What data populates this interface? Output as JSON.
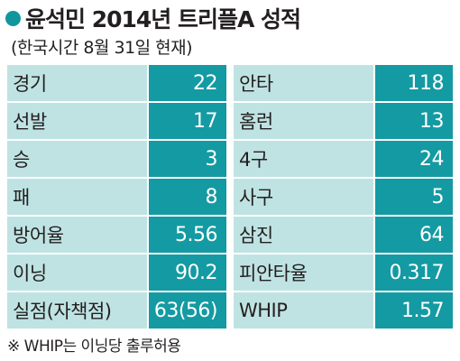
{
  "title": "윤석민 2014년 트리플A 성적",
  "subtitle": "(한국시간 8월 31일 현재)",
  "left_column": [
    {
      "label": "경기",
      "value": "22"
    },
    {
      "label": "선발",
      "value": "17"
    },
    {
      "label": "승",
      "value": "3"
    },
    {
      "label": "패",
      "value": "8"
    },
    {
      "label": "방어율",
      "value": "5.56"
    },
    {
      "label": "이닝",
      "value": "90.2"
    },
    {
      "label": "실점(자책점)",
      "value": "63(56)"
    }
  ],
  "right_column": [
    {
      "label": "안타",
      "value": "118"
    },
    {
      "label": "홈런",
      "value": "13"
    },
    {
      "label": "4구",
      "value": "24"
    },
    {
      "label": "사구",
      "value": "5"
    },
    {
      "label": "삼진",
      "value": "64"
    },
    {
      "label": "피안타율",
      "value": "0.317"
    },
    {
      "label": "WHIP",
      "value": "1.57"
    }
  ],
  "footnote": "※ WHIP는 이닝당 출루허용",
  "colors": {
    "accent": "#13959e",
    "label_bg": "#bfe3e3",
    "value_bg": "#149aa2",
    "text": "#231f20"
  }
}
